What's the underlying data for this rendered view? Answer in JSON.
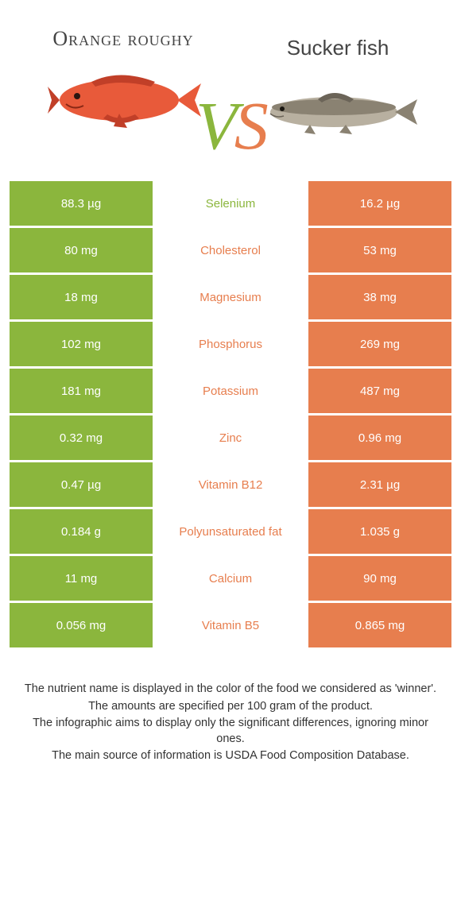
{
  "header": {
    "left_title": "Orange roughy",
    "right_title": "Sucker fish",
    "vs_v": "V",
    "vs_s": "S"
  },
  "colors": {
    "left": "#8bb63d",
    "right": "#e77e4e",
    "fish_left_body": "#e85a3a",
    "fish_left_fin": "#c13f28",
    "fish_right_body": "#b8b0a0",
    "fish_right_dark": "#6b6458"
  },
  "table": {
    "rows": [
      {
        "left": "88.3 µg",
        "mid": "Selenium",
        "winner": "left",
        "right": "16.2 µg"
      },
      {
        "left": "80 mg",
        "mid": "Cholesterol",
        "winner": "right",
        "right": "53 mg"
      },
      {
        "left": "18 mg",
        "mid": "Magnesium",
        "winner": "right",
        "right": "38 mg"
      },
      {
        "left": "102 mg",
        "mid": "Phosphorus",
        "winner": "right",
        "right": "269 mg"
      },
      {
        "left": "181 mg",
        "mid": "Potassium",
        "winner": "right",
        "right": "487 mg"
      },
      {
        "left": "0.32 mg",
        "mid": "Zinc",
        "winner": "right",
        "right": "0.96 mg"
      },
      {
        "left": "0.47 µg",
        "mid": "Vitamin B12",
        "winner": "right",
        "right": "2.31 µg"
      },
      {
        "left": "0.184 g",
        "mid": "Polyunsaturated fat",
        "winner": "right",
        "right": "1.035 g"
      },
      {
        "left": "11 mg",
        "mid": "Calcium",
        "winner": "right",
        "right": "90 mg"
      },
      {
        "left": "0.056 mg",
        "mid": "Vitamin B5",
        "winner": "right",
        "right": "0.865 mg"
      }
    ]
  },
  "footer": {
    "line1": "The nutrient name is displayed in the color of the food we considered as 'winner'.",
    "line2": "The amounts are specified per 100 gram of the product.",
    "line3": "The infographic aims to display only the significant differences, ignoring minor ones.",
    "line4": "The main source of information is USDA Food Composition Database."
  }
}
